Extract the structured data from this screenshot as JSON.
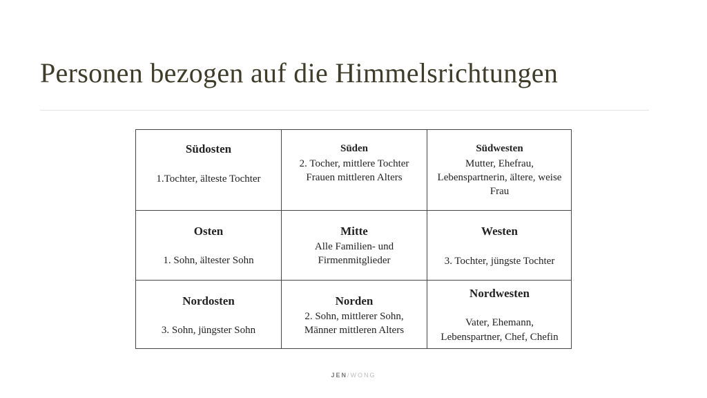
{
  "title": "Personen bezogen auf die Himmelsrichtungen",
  "cells": [
    {
      "heading": "Südosten",
      "body": [
        "1.Tochter, älteste Tochter"
      ]
    },
    {
      "heading": "Süden",
      "body": [
        "2. Tocher, mittlere Tochter",
        "Frauen mittleren Alters"
      ]
    },
    {
      "heading": "Südwesten",
      "body": [
        "Mutter, Ehefrau,",
        "Lebenspartnerin, ältere, weise",
        "Frau"
      ]
    },
    {
      "heading": "Osten",
      "body": [
        "1. Sohn, ältester Sohn"
      ]
    },
    {
      "heading": "Mitte",
      "body": [
        "Alle Familien- und",
        "Firmenmitglieder"
      ]
    },
    {
      "heading": "Westen",
      "body": [
        "3. Tochter, jüngste Tochter"
      ]
    },
    {
      "heading": "Nordosten",
      "body": [
        "3. Sohn, jüngster Sohn"
      ]
    },
    {
      "heading": "Norden",
      "body": [
        "2. Sohn, mittlerer Sohn,",
        "Männer mittleren Alters"
      ]
    },
    {
      "heading": "Nordwesten",
      "body": [
        "Vater, Ehemann,",
        "Lebenspartner, Chef, Chefin"
      ]
    }
  ],
  "footer": {
    "left": "JEN",
    "right": "WONG"
  }
}
